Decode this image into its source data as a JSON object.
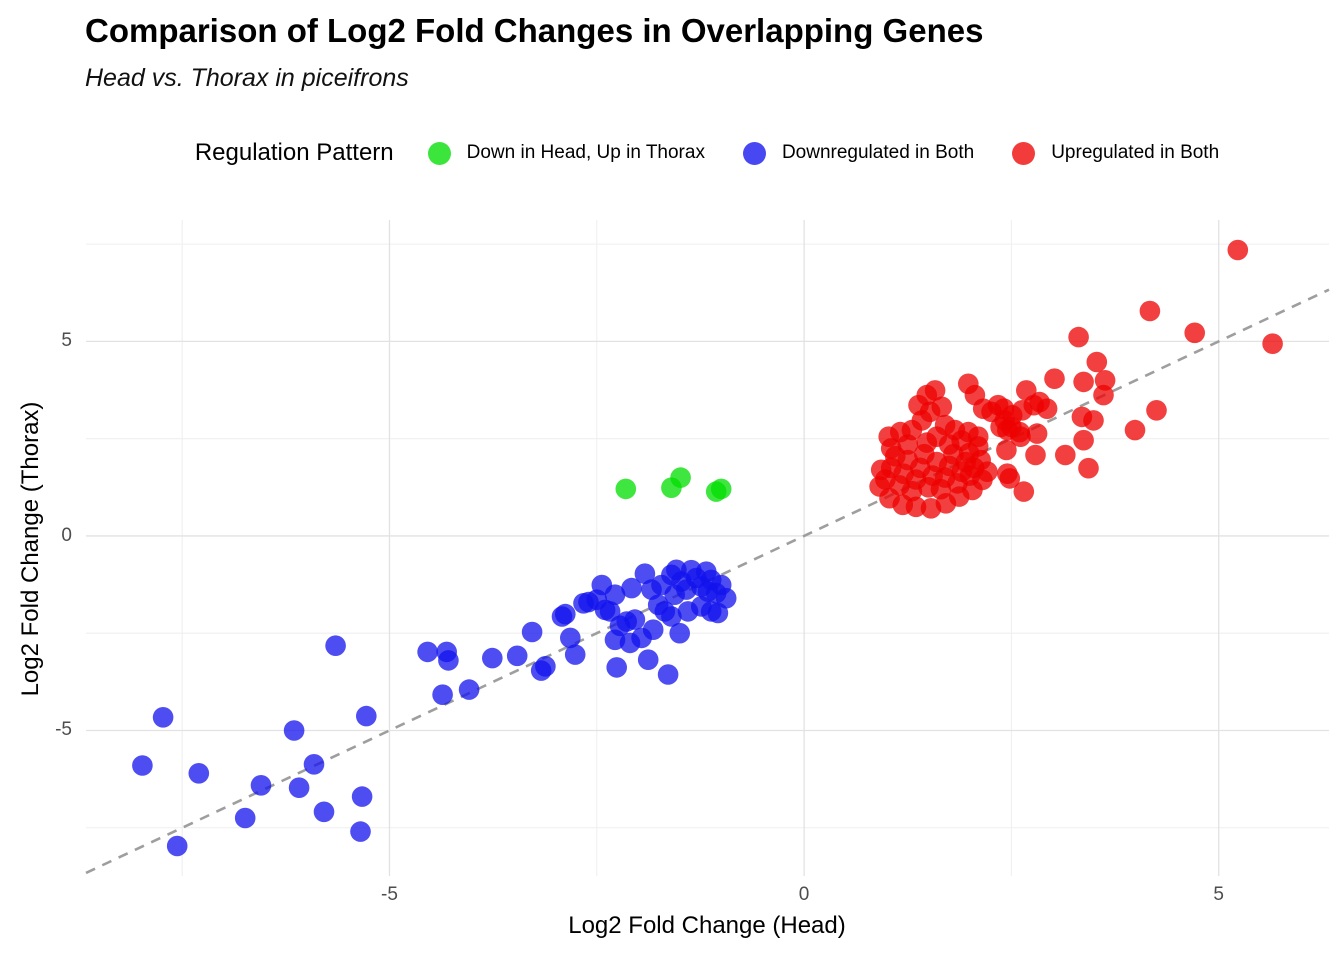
{
  "title": "Comparison of Log2 Fold Changes in Overlapping Genes",
  "subtitle": "Head vs. Thorax in piceifrons",
  "legend": {
    "title": "Regulation Pattern",
    "items": [
      {
        "label": "Down in Head, Up in Thorax",
        "color": "#00DD00"
      },
      {
        "label": "Downregulated in Both",
        "color": "#1111EE"
      },
      {
        "label": "Upregulated in Both",
        "color": "#EE0000"
      }
    ]
  },
  "axes": {
    "x": {
      "label": "Log2 Fold Change (Head)",
      "lim": [
        -8.66,
        6.33
      ],
      "ticks_major": [
        {
          "v": -5,
          "label": "-5"
        },
        {
          "v": 0,
          "label": "0"
        },
        {
          "v": 5,
          "label": "5"
        }
      ],
      "ticks_minor": [
        -7.5,
        -2.5,
        2.5,
        7.5
      ]
    },
    "y": {
      "label": "Log2 Fold Change (Thorax)",
      "lim": [
        -8.74,
        8.12
      ],
      "ticks_major": [
        {
          "v": 5,
          "label": "5"
        },
        {
          "v": 0,
          "label": "0"
        },
        {
          "v": -5,
          "label": "-5"
        }
      ],
      "ticks_minor": [
        7.5,
        2.5,
        -2.5,
        -7.5
      ]
    }
  },
  "style": {
    "grid_major_color": "#e2e2e2",
    "grid_minor_color": "#efefef",
    "point_opacity": 0.75,
    "point_radius": 10.3,
    "ref_line_color": "#9e9e9e"
  },
  "chart_data": {
    "type": "scatter",
    "title": "Comparison of Log2 Fold Changes in Overlapping Genes",
    "subtitle": "Head vs. Thorax in piceifrons",
    "xlabel": "Log2 Fold Change (Head)",
    "ylabel": "Log2 Fold Change (Thorax)",
    "xlim": [
      -8.66,
      6.33
    ],
    "ylim": [
      -8.74,
      8.12
    ],
    "grid": true,
    "legend_position": "top",
    "reference_line": {
      "type": "identity y=x",
      "style": "dashed",
      "color": "#9e9e9e"
    },
    "series": [
      {
        "name": "Down in Head, Up in Thorax",
        "color": "#00DD00",
        "points": [
          [
            -2.15,
            1.21
          ],
          [
            -1.6,
            1.24
          ],
          [
            -1.49,
            1.5
          ],
          [
            -1.06,
            1.14
          ],
          [
            -1.0,
            1.21
          ]
        ]
      },
      {
        "name": "Downregulated in Both",
        "color": "#1111EE",
        "points": [
          [
            -7.98,
            -5.9
          ],
          [
            -7.73,
            -4.66
          ],
          [
            -7.56,
            -7.97
          ],
          [
            -7.3,
            -6.1
          ],
          [
            -6.74,
            -7.25
          ],
          [
            -6.55,
            -6.41
          ],
          [
            -6.15,
            -5.0
          ],
          [
            -6.09,
            -6.47
          ],
          [
            -5.91,
            -5.87
          ],
          [
            -5.79,
            -7.09
          ],
          [
            -5.65,
            -2.82
          ],
          [
            -5.35,
            -7.6
          ],
          [
            -5.33,
            -6.7
          ],
          [
            -5.28,
            -4.63
          ],
          [
            -4.54,
            -2.98
          ],
          [
            -4.36,
            -4.08
          ],
          [
            -4.31,
            -2.98
          ],
          [
            -4.29,
            -3.2
          ],
          [
            -4.04,
            -3.95
          ],
          [
            -3.76,
            -3.14
          ],
          [
            -3.46,
            -3.08
          ],
          [
            -3.28,
            -2.47
          ],
          [
            -3.17,
            -3.46
          ],
          [
            -3.12,
            -3.35
          ],
          [
            -2.92,
            -2.07
          ],
          [
            -2.88,
            -2.01
          ],
          [
            -2.82,
            -2.62
          ],
          [
            -2.76,
            -3.05
          ],
          [
            -2.66,
            -1.73
          ],
          [
            -2.6,
            -1.7
          ],
          [
            -2.5,
            -1.64
          ],
          [
            -2.44,
            -1.26
          ],
          [
            -2.4,
            -1.9
          ],
          [
            -2.34,
            -1.94
          ],
          [
            -2.28,
            -1.51
          ],
          [
            -2.28,
            -2.67
          ],
          [
            -2.26,
            -3.38
          ],
          [
            -2.22,
            -2.31
          ],
          [
            -2.14,
            -2.2
          ],
          [
            -2.1,
            -2.75
          ],
          [
            -2.08,
            -1.34
          ],
          [
            -2.04,
            -2.15
          ],
          [
            -1.96,
            -2.62
          ],
          [
            -1.92,
            -0.97
          ],
          [
            -1.88,
            -3.18
          ],
          [
            -1.84,
            -1.38
          ],
          [
            -1.82,
            -2.41
          ],
          [
            -1.76,
            -1.77
          ],
          [
            -1.72,
            -1.26
          ],
          [
            -1.68,
            -1.94
          ],
          [
            -1.64,
            -3.56
          ],
          [
            -1.6,
            -1.0
          ],
          [
            -1.6,
            -2.07
          ],
          [
            -1.56,
            -1.51
          ],
          [
            -1.54,
            -0.87
          ],
          [
            -1.5,
            -2.5
          ],
          [
            -1.48,
            -1.17
          ],
          [
            -1.42,
            -1.38
          ],
          [
            -1.4,
            -1.94
          ],
          [
            -1.36,
            -0.88
          ],
          [
            -1.3,
            -1.08
          ],
          [
            -1.24,
            -1.3
          ],
          [
            -1.24,
            -1.81
          ],
          [
            -1.18,
            -0.92
          ],
          [
            -1.16,
            -1.43
          ],
          [
            -1.12,
            -1.13
          ],
          [
            -1.12,
            -1.94
          ],
          [
            -1.06,
            -1.47
          ],
          [
            -1.04,
            -1.98
          ],
          [
            -1.0,
            -1.26
          ],
          [
            -0.94,
            -1.6
          ]
        ]
      },
      {
        "name": "Upregulated in Both",
        "color": "#EE0000",
        "points": [
          [
            0.91,
            1.27
          ],
          [
            0.93,
            1.7
          ],
          [
            0.98,
            1.45
          ],
          [
            1.02,
            2.55
          ],
          [
            1.03,
            0.97
          ],
          [
            1.05,
            1.75
          ],
          [
            1.05,
            2.25
          ],
          [
            1.1,
            2.05
          ],
          [
            1.15,
            1.3
          ],
          [
            1.16,
            2.67
          ],
          [
            1.19,
            0.8
          ],
          [
            1.2,
            1.6
          ],
          [
            1.25,
            1.95
          ],
          [
            1.25,
            2.35
          ],
          [
            1.3,
            1.15
          ],
          [
            1.3,
            2.72
          ],
          [
            1.35,
            0.75
          ],
          [
            1.35,
            1.45
          ],
          [
            1.4,
            1.75
          ],
          [
            1.42,
            2.97
          ],
          [
            1.45,
            2.1
          ],
          [
            1.48,
            2.4
          ],
          [
            1.5,
            1.25
          ],
          [
            1.53,
            0.71
          ],
          [
            1.55,
            1.55
          ],
          [
            1.6,
            1.9
          ],
          [
            1.6,
            2.55
          ],
          [
            1.65,
            1.2
          ],
          [
            1.7,
            1.5
          ],
          [
            1.7,
            2.85
          ],
          [
            1.71,
            0.84
          ],
          [
            1.75,
            1.8
          ],
          [
            1.75,
            2.35
          ],
          [
            1.8,
            2.1
          ],
          [
            1.82,
            2.72
          ],
          [
            1.85,
            1.35
          ],
          [
            1.87,
            1.01
          ],
          [
            1.9,
            1.65
          ],
          [
            1.9,
            2.45
          ],
          [
            1.95,
            1.9
          ],
          [
            1.99,
            2.13
          ],
          [
            2.0,
            1.55
          ],
          [
            2.03,
            1.18
          ],
          [
            2.05,
            1.75
          ],
          [
            2.1,
            2.3
          ],
          [
            2.13,
            1.95
          ],
          [
            2.15,
            1.44
          ],
          [
            2.21,
            1.65
          ],
          [
            1.38,
            3.36
          ],
          [
            1.48,
            3.62
          ],
          [
            1.52,
            3.19
          ],
          [
            1.58,
            3.74
          ],
          [
            1.66,
            3.32
          ],
          [
            1.98,
            2.67
          ],
          [
            1.98,
            3.91
          ],
          [
            2.06,
            3.62
          ],
          [
            2.1,
            2.55
          ],
          [
            2.16,
            3.27
          ],
          [
            2.26,
            3.19
          ],
          [
            2.34,
            3.36
          ],
          [
            2.42,
            2.97
          ],
          [
            2.5,
            2.8
          ],
          [
            2.6,
            2.67
          ],
          [
            2.37,
            2.8
          ],
          [
            2.41,
            3.27
          ],
          [
            2.44,
            2.21
          ],
          [
            2.45,
            1.6
          ],
          [
            2.45,
            2.72
          ],
          [
            2.48,
            1.48
          ],
          [
            2.51,
            3.1
          ],
          [
            2.61,
            2.55
          ],
          [
            2.63,
            3.23
          ],
          [
            2.65,
            1.14
          ],
          [
            2.68,
            3.74
          ],
          [
            2.77,
            3.36
          ],
          [
            2.79,
            2.08
          ],
          [
            2.81,
            2.63
          ],
          [
            2.84,
            3.44
          ],
          [
            2.93,
            3.27
          ],
          [
            3.02,
            4.04
          ],
          [
            3.15,
            2.08
          ],
          [
            3.35,
            3.06
          ],
          [
            3.37,
            2.46
          ],
          [
            3.37,
            3.96
          ],
          [
            3.43,
            1.74
          ],
          [
            3.49,
            2.97
          ],
          [
            3.53,
            4.47
          ],
          [
            3.61,
            3.62
          ],
          [
            3.63,
            4.0
          ],
          [
            3.99,
            2.72
          ],
          [
            4.25,
            3.23
          ],
          [
            3.31,
            5.11
          ],
          [
            4.17,
            5.78
          ],
          [
            4.71,
            5.22
          ],
          [
            5.23,
            7.35
          ],
          [
            5.65,
            4.94
          ]
        ]
      }
    ]
  }
}
